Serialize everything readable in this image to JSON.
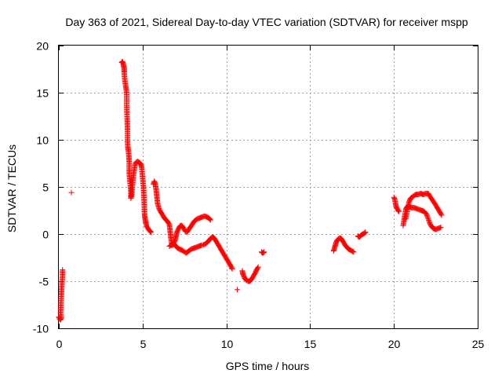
{
  "chart_data": {
    "type": "scatter",
    "title": "Day 363 of 2021, Sidereal Day-to-day VTEC variation (SDTVAR) for receiver mspp",
    "xlabel": "GPS time / hours",
    "ylabel": "SDTVAR / TECUs",
    "xlim": [
      0,
      25
    ],
    "ylim": [
      -10,
      20
    ],
    "xticks": [
      0,
      5,
      10,
      15,
      20,
      25
    ],
    "yticks": [
      -10,
      -5,
      0,
      5,
      10,
      15,
      20
    ],
    "grid": true,
    "marker": "+",
    "color": "#ff0000",
    "series": [
      {
        "name": "SDTVAR",
        "segments": [
          [
            [
              0.0,
              -8.8
            ],
            [
              0.05,
              -9.0
            ],
            [
              0.1,
              -9.1
            ],
            [
              0.15,
              -8.9
            ],
            [
              0.1,
              -8.4
            ],
            [
              0.12,
              -7.8
            ],
            [
              0.15,
              -6.5
            ],
            [
              0.18,
              -5.4
            ],
            [
              0.2,
              -4.9
            ],
            [
              0.22,
              -4.4
            ],
            [
              0.22,
              -3.8
            ]
          ],
          [
            [
              0.75,
              4.4
            ]
          ],
          [
            [
              3.75,
              18.2
            ],
            [
              3.8,
              18.3
            ],
            [
              3.85,
              18.0
            ],
            [
              3.9,
              17.6
            ],
            [
              3.9,
              17.2
            ],
            [
              3.92,
              16.7
            ],
            [
              3.95,
              16.2
            ],
            [
              4.0,
              15.6
            ],
            [
              4.02,
              15.4
            ],
            [
              4.05,
              14.8
            ],
            [
              4.05,
              13.6
            ],
            [
              4.08,
              12.2
            ],
            [
              4.1,
              11.0
            ],
            [
              4.1,
              9.8
            ],
            [
              4.12,
              9.2
            ],
            [
              4.15,
              8.9
            ],
            [
              4.18,
              8.3
            ],
            [
              4.2,
              7.6
            ],
            [
              4.2,
              6.8
            ],
            [
              4.22,
              6.0
            ],
            [
              4.25,
              5.5
            ],
            [
              4.28,
              5.0
            ],
            [
              4.3,
              4.4
            ],
            [
              4.3,
              3.8
            ],
            [
              4.35,
              4.2
            ],
            [
              4.4,
              5.2
            ],
            [
              4.45,
              6.2
            ],
            [
              4.5,
              6.8
            ],
            [
              4.55,
              7.4
            ],
            [
              4.6,
              7.6
            ],
            [
              4.7,
              7.7
            ],
            [
              4.8,
              7.6
            ],
            [
              4.9,
              7.4
            ],
            [
              4.95,
              7.0
            ],
            [
              5.0,
              6.0
            ],
            [
              5.05,
              5.0
            ],
            [
              5.08,
              4.0
            ],
            [
              5.1,
              3.0
            ],
            [
              5.12,
              2.0
            ],
            [
              5.15,
              1.6
            ],
            [
              5.2,
              1.2
            ],
            [
              5.25,
              0.8
            ],
            [
              5.35,
              0.5
            ],
            [
              5.45,
              0.3
            ],
            [
              5.5,
              0.2
            ]
          ],
          [
            [
              5.65,
              5.3
            ],
            [
              5.7,
              5.6
            ],
            [
              5.75,
              5.4
            ],
            [
              5.8,
              4.8
            ],
            [
              5.85,
              4.0
            ],
            [
              5.9,
              3.2
            ],
            [
              6.0,
              2.6
            ],
            [
              6.1,
              2.3
            ],
            [
              6.2,
              2.0
            ],
            [
              6.3,
              1.7
            ],
            [
              6.4,
              1.5
            ],
            [
              6.5,
              1.3
            ],
            [
              6.6,
              1.0
            ],
            [
              6.65,
              0.2
            ],
            [
              6.7,
              -0.6
            ],
            [
              6.75,
              -1.2
            ],
            [
              6.85,
              -1.0
            ],
            [
              6.95,
              -0.6
            ],
            [
              7.0,
              -0.2
            ],
            [
              7.05,
              0.2
            ],
            [
              7.15,
              0.6
            ],
            [
              7.25,
              0.9
            ],
            [
              7.35,
              0.9
            ],
            [
              7.45,
              0.6
            ],
            [
              7.55,
              0.3
            ],
            [
              7.65,
              0.2
            ],
            [
              7.8,
              0.6
            ],
            [
              7.95,
              1.0
            ],
            [
              8.1,
              1.4
            ],
            [
              8.25,
              1.6
            ],
            [
              8.4,
              1.7
            ],
            [
              8.55,
              1.8
            ],
            [
              8.7,
              1.9
            ],
            [
              8.85,
              1.8
            ],
            [
              8.95,
              1.7
            ],
            [
              9.05,
              1.5
            ]
          ],
          [
            [
              6.6,
              -1.3
            ],
            [
              6.75,
              -1.1
            ],
            [
              6.9,
              -1.1
            ],
            [
              7.0,
              -1.3
            ],
            [
              7.1,
              -1.5
            ],
            [
              7.2,
              -1.6
            ],
            [
              7.35,
              -1.7
            ],
            [
              7.5,
              -1.9
            ],
            [
              7.6,
              -2.0
            ],
            [
              7.75,
              -1.8
            ],
            [
              7.9,
              -1.6
            ],
            [
              8.05,
              -1.5
            ],
            [
              8.2,
              -1.4
            ],
            [
              8.35,
              -1.3
            ],
            [
              8.5,
              -1.2
            ],
            [
              8.7,
              -1.1
            ],
            [
              8.85,
              -0.9
            ],
            [
              9.0,
              -0.6
            ],
            [
              9.1,
              -0.4
            ],
            [
              9.2,
              -0.3
            ],
            [
              9.3,
              -0.5
            ],
            [
              9.4,
              -0.8
            ],
            [
              9.5,
              -1.1
            ],
            [
              9.6,
              -1.4
            ],
            [
              9.7,
              -1.7
            ],
            [
              9.8,
              -2.0
            ],
            [
              9.9,
              -2.3
            ],
            [
              10.0,
              -2.6
            ],
            [
              10.1,
              -2.9
            ],
            [
              10.2,
              -3.2
            ],
            [
              10.3,
              -3.5
            ],
            [
              10.35,
              -3.7
            ]
          ],
          [
            [
              10.65,
              -5.9
            ]
          ],
          [
            [
              10.95,
              -3.9
            ],
            [
              11.0,
              -4.3
            ],
            [
              11.05,
              -4.5
            ],
            [
              11.1,
              -4.7
            ],
            [
              11.2,
              -4.9
            ],
            [
              11.3,
              -5.0
            ],
            [
              11.4,
              -5.0
            ],
            [
              11.5,
              -4.8
            ],
            [
              11.6,
              -4.5
            ],
            [
              11.7,
              -4.2
            ],
            [
              11.8,
              -3.8
            ],
            [
              11.9,
              -3.5
            ]
          ],
          [
            [
              12.1,
              -1.9
            ],
            [
              12.15,
              -2.0
            ],
            [
              12.2,
              -2.0
            ],
            [
              12.25,
              -1.9
            ]
          ],
          [
            [
              16.4,
              -1.8
            ],
            [
              16.45,
              -1.5
            ],
            [
              16.5,
              -1.2
            ],
            [
              16.55,
              -0.9
            ],
            [
              16.6,
              -0.7
            ],
            [
              16.7,
              -0.5
            ],
            [
              16.8,
              -0.4
            ],
            [
              16.9,
              -0.6
            ],
            [
              17.0,
              -0.9
            ],
            [
              17.1,
              -1.2
            ],
            [
              17.2,
              -1.4
            ],
            [
              17.3,
              -1.6
            ],
            [
              17.4,
              -1.7
            ],
            [
              17.5,
              -1.8
            ],
            [
              17.6,
              -1.9
            ]
          ],
          [
            [
              17.85,
              -0.2
            ],
            [
              17.9,
              -0.3
            ],
            [
              17.95,
              -0.3
            ],
            [
              18.05,
              -0.1
            ],
            [
              18.15,
              0.0
            ],
            [
              18.25,
              0.1
            ],
            [
              18.3,
              0.2
            ]
          ],
          [
            [
              20.0,
              3.9
            ],
            [
              20.05,
              3.7
            ],
            [
              20.1,
              3.2
            ],
            [
              20.15,
              2.8
            ],
            [
              20.25,
              2.5
            ],
            [
              20.3,
              2.4
            ]
          ],
          [
            [
              20.55,
              0.9
            ],
            [
              20.6,
              1.4
            ],
            [
              20.65,
              2.0
            ],
            [
              20.7,
              2.5
            ],
            [
              20.75,
              2.8
            ],
            [
              20.85,
              3.0
            ],
            [
              20.95,
              2.9
            ],
            [
              21.05,
              2.8
            ],
            [
              21.2,
              2.8
            ],
            [
              21.35,
              2.7
            ],
            [
              21.5,
              2.6
            ],
            [
              21.65,
              2.5
            ],
            [
              21.8,
              2.4
            ],
            [
              21.95,
              2.1
            ],
            [
              22.05,
              1.6
            ],
            [
              22.15,
              1.1
            ],
            [
              22.25,
              0.8
            ],
            [
              22.35,
              0.6
            ],
            [
              22.5,
              0.5
            ],
            [
              22.65,
              0.6
            ],
            [
              22.8,
              0.7
            ]
          ],
          [
            [
              20.7,
              1.6
            ],
            [
              20.8,
              2.5
            ],
            [
              20.9,
              3.4
            ],
            [
              21.0,
              3.8
            ],
            [
              21.15,
              4.0
            ],
            [
              21.3,
              4.2
            ],
            [
              21.45,
              4.2
            ],
            [
              21.6,
              4.3
            ],
            [
              21.75,
              4.2
            ],
            [
              21.9,
              4.3
            ],
            [
              22.05,
              4.3
            ],
            [
              22.15,
              4.0
            ],
            [
              22.3,
              3.6
            ],
            [
              22.45,
              3.2
            ],
            [
              22.55,
              2.9
            ],
            [
              22.65,
              2.6
            ],
            [
              22.75,
              2.3
            ],
            [
              22.85,
              2.0
            ]
          ]
        ]
      }
    ]
  }
}
